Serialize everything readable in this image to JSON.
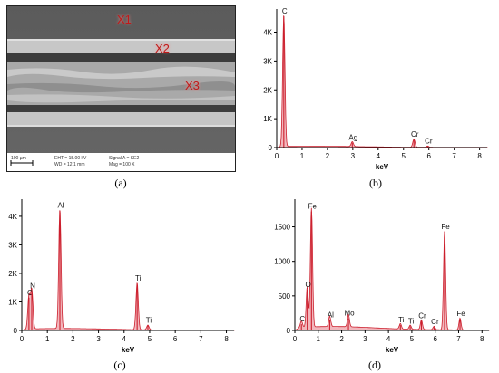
{
  "figure": {
    "panels": [
      {
        "id": "a",
        "caption": "(a)"
      },
      {
        "id": "b",
        "caption": "(b)"
      },
      {
        "id": "c",
        "caption": "(c)"
      },
      {
        "id": "d",
        "caption": "(d)"
      }
    ]
  },
  "sem_image": {
    "points": [
      "X1",
      "X2",
      "X3"
    ],
    "scalebar": "100 µm",
    "info_col1": [
      "EHT = 15.00 kV",
      "WD = 12.1 mm"
    ],
    "info_col2": [
      "Signal A = SE2",
      "Mag = 100 X"
    ]
  },
  "colors": {
    "spectrum_fill": "#f2b7bd",
    "spectrum_line": "#cc1f2d",
    "label": "#111111",
    "point_label": "#c01a1a"
  },
  "chart_data": [
    {
      "type": "area",
      "panel": "b",
      "xlabel": "keV",
      "ylabel": "",
      "xlim": [
        0,
        8.3
      ],
      "ylim": [
        0,
        4800
      ],
      "xticks": [
        0,
        1,
        2,
        3,
        4,
        5,
        6,
        7,
        8
      ],
      "yticks": [
        {
          "v": 0,
          "label": "0"
        },
        {
          "v": 1000,
          "label": "1K"
        },
        {
          "v": 2000,
          "label": "2K"
        },
        {
          "v": 3000,
          "label": "3K"
        },
        {
          "v": 4000,
          "label": "4K"
        }
      ],
      "background": 40,
      "peaks": [
        {
          "x": 0.28,
          "y": 4550,
          "label": "C"
        },
        {
          "x": 2.98,
          "y": 170,
          "label": "Ag"
        },
        {
          "x": 5.41,
          "y": 280,
          "label": "Cr"
        },
        {
          "x": 5.95,
          "y": 45,
          "label": "Cr"
        }
      ]
    },
    {
      "type": "area",
      "panel": "c",
      "xlabel": "keV",
      "ylabel": "",
      "xlim": [
        0,
        8.3
      ],
      "ylim": [
        0,
        4600
      ],
      "xticks": [
        0,
        1,
        2,
        3,
        4,
        5,
        6,
        7,
        8
      ],
      "yticks": [
        {
          "v": 0,
          "label": "0"
        },
        {
          "v": 1000,
          "label": "1K"
        },
        {
          "v": 2000,
          "label": "2K"
        },
        {
          "v": 3000,
          "label": "3K"
        },
        {
          "v": 4000,
          "label": "4K"
        }
      ],
      "background": 60,
      "peaks": [
        {
          "x": 0.28,
          "y": 1150,
          "label": "C"
        },
        {
          "x": 0.39,
          "y": 1380,
          "label": "N"
        },
        {
          "x": 1.49,
          "y": 4200,
          "label": "Al"
        },
        {
          "x": 4.51,
          "y": 1650,
          "label": "Ti"
        },
        {
          "x": 4.93,
          "y": 170,
          "label": "Ti"
        }
      ]
    },
    {
      "type": "area",
      "panel": "d",
      "xlabel": "keV",
      "ylabel": "",
      "xlim": [
        0,
        8.3
      ],
      "ylim": [
        0,
        1900
      ],
      "xticks": [
        0,
        1,
        2,
        3,
        4,
        5,
        6,
        7,
        8
      ],
      "yticks": [
        {
          "v": 0,
          "label": "0"
        },
        {
          "v": 500,
          "label": "500"
        },
        {
          "v": 1000,
          "label": "1000"
        },
        {
          "v": 1500,
          "label": "1500"
        }
      ],
      "background": 50,
      "peaks": [
        {
          "x": 0.28,
          "y": 90,
          "label": "C"
        },
        {
          "x": 0.53,
          "y": 590,
          "label": "O"
        },
        {
          "x": 0.71,
          "y": 1720,
          "label": "Fe"
        },
        {
          "x": 1.49,
          "y": 150,
          "label": "Al"
        },
        {
          "x": 2.29,
          "y": 175,
          "label": "Mo"
        },
        {
          "x": 4.51,
          "y": 80,
          "label": "Ti"
        },
        {
          "x": 4.93,
          "y": 60,
          "label": "Ti"
        },
        {
          "x": 5.41,
          "y": 140,
          "label": "Cr"
        },
        {
          "x": 5.95,
          "y": 50,
          "label": "Cr"
        },
        {
          "x": 6.4,
          "y": 1430,
          "label": "Fe"
        },
        {
          "x": 7.06,
          "y": 170,
          "label": "Fe"
        }
      ]
    }
  ]
}
